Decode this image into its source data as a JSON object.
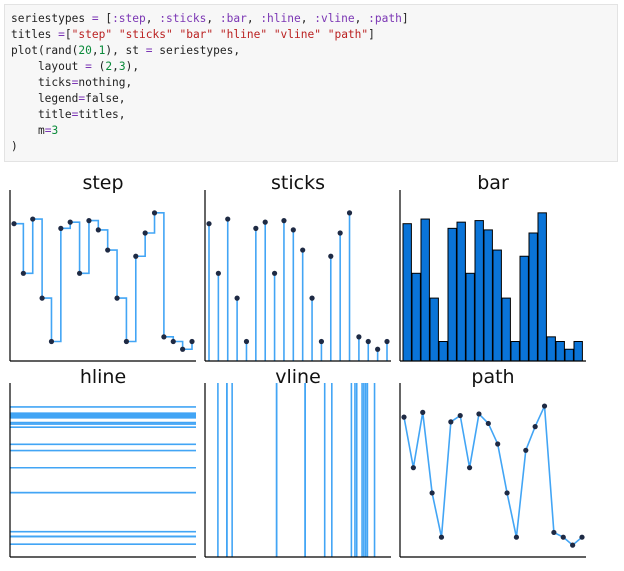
{
  "code": {
    "lines": [
      [
        {
          "t": "seriestypes ",
          "c": ""
        },
        {
          "t": "=",
          "c": "op"
        },
        {
          "t": " [",
          "c": ""
        },
        {
          "t": ":step",
          "c": "kw"
        },
        {
          "t": ", ",
          "c": ""
        },
        {
          "t": ":sticks",
          "c": "kw"
        },
        {
          "t": ", ",
          "c": ""
        },
        {
          "t": ":bar",
          "c": "kw"
        },
        {
          "t": ", ",
          "c": ""
        },
        {
          "t": ":hline",
          "c": "kw"
        },
        {
          "t": ", ",
          "c": ""
        },
        {
          "t": ":vline",
          "c": "kw"
        },
        {
          "t": ", ",
          "c": ""
        },
        {
          "t": ":path",
          "c": "kw"
        },
        {
          "t": "]",
          "c": ""
        }
      ],
      [
        {
          "t": "titles ",
          "c": ""
        },
        {
          "t": "=",
          "c": "op"
        },
        {
          "t": "[",
          "c": ""
        },
        {
          "t": "\"step\"",
          "c": "st"
        },
        {
          "t": " ",
          "c": ""
        },
        {
          "t": "\"sticks\"",
          "c": "st"
        },
        {
          "t": " ",
          "c": ""
        },
        {
          "t": "\"bar\"",
          "c": "st"
        },
        {
          "t": " ",
          "c": ""
        },
        {
          "t": "\"hline\"",
          "c": "st"
        },
        {
          "t": " ",
          "c": ""
        },
        {
          "t": "\"vline\"",
          "c": "st"
        },
        {
          "t": " ",
          "c": ""
        },
        {
          "t": "\"path\"",
          "c": "st"
        },
        {
          "t": "]",
          "c": ""
        }
      ],
      [
        {
          "t": "plot(rand(",
          "c": ""
        },
        {
          "t": "20",
          "c": "num"
        },
        {
          "t": ",",
          "c": ""
        },
        {
          "t": "1",
          "c": "num"
        },
        {
          "t": "), st ",
          "c": ""
        },
        {
          "t": "=",
          "c": "op"
        },
        {
          "t": " seriestypes,",
          "c": ""
        }
      ],
      [
        {
          "t": "    layout ",
          "c": ""
        },
        {
          "t": "=",
          "c": "op"
        },
        {
          "t": " (",
          "c": ""
        },
        {
          "t": "2",
          "c": "num"
        },
        {
          "t": ",",
          "c": ""
        },
        {
          "t": "3",
          "c": "num"
        },
        {
          "t": "),",
          "c": ""
        }
      ],
      [
        {
          "t": "    ticks",
          "c": ""
        },
        {
          "t": "=",
          "c": "op"
        },
        {
          "t": "nothing,",
          "c": ""
        }
      ],
      [
        {
          "t": "    legend",
          "c": ""
        },
        {
          "t": "=",
          "c": "op"
        },
        {
          "t": "false,",
          "c": ""
        }
      ],
      [
        {
          "t": "    title",
          "c": ""
        },
        {
          "t": "=",
          "c": "op"
        },
        {
          "t": "titles,",
          "c": ""
        }
      ],
      [
        {
          "t": "    m",
          "c": ""
        },
        {
          "t": "=",
          "c": "op"
        },
        {
          "t": "3",
          "c": "num"
        }
      ],
      [
        {
          "t": ")",
          "c": ""
        }
      ]
    ]
  },
  "colors": {
    "line": "#42a5f5",
    "bar_fill": "#0a74d8",
    "marker": "#1e2a44",
    "axis": "#000000"
  },
  "chart_data": [
    {
      "type": "line",
      "subtype": "step",
      "title": "step",
      "ylim": [
        0,
        1
      ],
      "x": [
        1,
        2,
        3,
        4,
        5,
        6,
        7,
        8,
        9,
        10,
        11,
        12,
        13,
        14,
        15,
        16,
        17,
        18,
        19,
        20
      ],
      "values": [
        0.86,
        0.54,
        0.89,
        0.38,
        0.1,
        0.83,
        0.87,
        0.54,
        0.88,
        0.82,
        0.69,
        0.38,
        0.1,
        0.65,
        0.8,
        0.93,
        0.13,
        0.1,
        0.05,
        0.1
      ]
    },
    {
      "type": "line",
      "subtype": "sticks",
      "title": "sticks",
      "ylim": [
        0,
        1
      ],
      "x": [
        1,
        2,
        3,
        4,
        5,
        6,
        7,
        8,
        9,
        10,
        11,
        12,
        13,
        14,
        15,
        16,
        17,
        18,
        19,
        20
      ],
      "values": [
        0.86,
        0.54,
        0.89,
        0.38,
        0.1,
        0.83,
        0.87,
        0.54,
        0.88,
        0.82,
        0.69,
        0.38,
        0.1,
        0.65,
        0.8,
        0.93,
        0.13,
        0.1,
        0.05,
        0.1
      ]
    },
    {
      "type": "bar",
      "title": "bar",
      "ylim": [
        0,
        1
      ],
      "x": [
        1,
        2,
        3,
        4,
        5,
        6,
        7,
        8,
        9,
        10,
        11,
        12,
        13,
        14,
        15,
        16,
        17,
        18,
        19,
        20
      ],
      "values": [
        0.86,
        0.54,
        0.89,
        0.38,
        0.1,
        0.83,
        0.87,
        0.54,
        0.88,
        0.82,
        0.69,
        0.38,
        0.1,
        0.65,
        0.8,
        0.93,
        0.13,
        0.1,
        0.05,
        0.1
      ]
    },
    {
      "type": "line",
      "subtype": "hline",
      "title": "hline",
      "values": [
        0.86,
        0.54,
        0.89,
        0.38,
        0.1,
        0.83,
        0.87,
        0.54,
        0.88,
        0.82,
        0.69,
        0.38,
        0.1,
        0.65,
        0.8,
        0.93,
        0.13,
        0.1,
        0.05,
        0.1
      ]
    },
    {
      "type": "line",
      "subtype": "vline",
      "title": "vline",
      "values": [
        0.86,
        0.54,
        0.89,
        0.38,
        0.1,
        0.83,
        0.87,
        0.54,
        0.88,
        0.82,
        0.69,
        0.38,
        0.1,
        0.65,
        0.8,
        0.93,
        0.13,
        0.1,
        0.05,
        0.1
      ]
    },
    {
      "type": "line",
      "subtype": "path",
      "title": "path",
      "ylim": [
        0,
        1
      ],
      "x": [
        1,
        2,
        3,
        4,
        5,
        6,
        7,
        8,
        9,
        10,
        11,
        12,
        13,
        14,
        15,
        16,
        17,
        18,
        19,
        20
      ],
      "values": [
        0.86,
        0.54,
        0.89,
        0.38,
        0.1,
        0.83,
        0.87,
        0.54,
        0.88,
        0.82,
        0.69,
        0.38,
        0.1,
        0.65,
        0.8,
        0.93,
        0.13,
        0.1,
        0.05,
        0.1
      ]
    }
  ]
}
